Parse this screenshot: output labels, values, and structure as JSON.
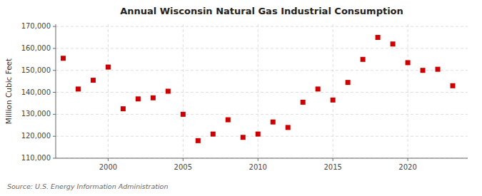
{
  "chart_data": {
    "type": "scatter",
    "title": "Annual Wisconsin Natural Gas Industrial Consumption",
    "ylabel": "Million Cubic Feet",
    "annotations": [
      "Source: U.S. Energy Information Administration"
    ],
    "x": [
      1997,
      1998,
      1999,
      2000,
      2001,
      2002,
      2003,
      2004,
      2005,
      2006,
      2007,
      2008,
      2009,
      2010,
      2011,
      2012,
      2013,
      2014,
      2015,
      2016,
      2017,
      2018,
      2019,
      2020,
      2021,
      2022,
      2023
    ],
    "values": [
      155500,
      141500,
      145500,
      151500,
      132500,
      137000,
      137500,
      140500,
      130000,
      118000,
      121000,
      127500,
      119500,
      121000,
      126500,
      124000,
      135500,
      141500,
      136500,
      144500,
      155000,
      165000,
      162000,
      153500,
      150000,
      150500,
      143000
    ],
    "color": "#cc0000",
    "marker": "square",
    "grid": true,
    "xlim": [
      1996.5,
      2024
    ],
    "xticks": [
      2000,
      2005,
      2010,
      2015,
      2020
    ],
    "ylim": [
      110000,
      171000
    ],
    "yticks": [
      {
        "value": 110000,
        "label": "110,000"
      },
      {
        "value": 120000,
        "label": "120,000"
      },
      {
        "value": 130000,
        "label": "130,000"
      },
      {
        "value": 140000,
        "label": "140,000"
      },
      {
        "value": 150000,
        "label": "150,000"
      },
      {
        "value": 160000,
        "label": "160,000"
      },
      {
        "value": 170000,
        "label": "170,000"
      }
    ]
  }
}
